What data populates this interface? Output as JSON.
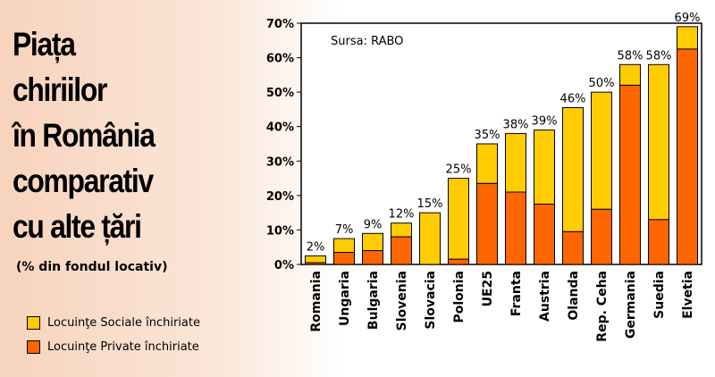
{
  "title_lines": [
    "Piața",
    "chiriilor",
    "în România",
    "comparativ",
    "cu alte țări"
  ],
  "subtitle": "(% din fondul locativ)",
  "source": "Sursa: RABO",
  "colors": {
    "private": "#ff6600",
    "social": "#ffcc00"
  },
  "legend": [
    {
      "label": "Locuinţe Sociale închiriate",
      "color": "#ffcc00"
    },
    {
      "label": "Locuinţe Private închiriate",
      "color": "#ff6600"
    }
  ],
  "chart_data": {
    "type": "bar",
    "stacked": true,
    "categories": [
      "Romania",
      "Ungaria",
      "Bulgaria",
      "Slovenia",
      "Slovacia",
      "Polonia",
      "UE25",
      "Franta",
      "Austria",
      "Olanda",
      "Rep. Ceha",
      "Germania",
      "Suedia",
      "Elvetia"
    ],
    "series": [
      {
        "name": "Locuinţe Private închiriate",
        "values": [
          0.5,
          3.5,
          4,
          8,
          0,
          1.5,
          23.5,
          21,
          17.5,
          9.5,
          16,
          52,
          13,
          62.5
        ]
      },
      {
        "name": "Locuinţe Sociale închiriate",
        "values": [
          2,
          4,
          5,
          4,
          15,
          23.5,
          11.5,
          17,
          21.5,
          36,
          34,
          6,
          45,
          6.5
        ]
      }
    ],
    "data_labels": [
      "2%",
      "7%",
      "9%",
      "12%",
      "15%",
      "25%",
      "35%",
      "38%",
      "39%",
      "46%",
      "50%",
      "58%",
      "58%",
      "69%"
    ],
    "yticks": [
      "0%",
      "10%",
      "20%",
      "30%",
      "40%",
      "50%",
      "60%",
      "70%"
    ],
    "ylim": [
      0,
      70
    ],
    "grid": false,
    "legend_position": "bottom-left"
  }
}
